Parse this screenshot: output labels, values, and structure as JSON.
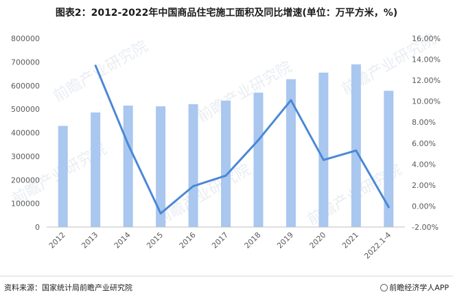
{
  "title": "图表2：2012-2022年中国商品住宅施工面积及同比增速(单位：万平方米，%)",
  "footer": {
    "source": "资料来源：国家统计局前瞻产业研究院",
    "brand": "前瞻经济学人APP"
  },
  "watermark": "前瞻产业研究院",
  "colors": {
    "bar": "#a9c7ef",
    "line": "#4a88d5",
    "axis": "#bfbfbf"
  },
  "chart_data": {
    "type": "bar+line",
    "categories": [
      "2012",
      "2013",
      "2014",
      "2015",
      "2016",
      "2017",
      "2018",
      "2019",
      "2020",
      "2021",
      "2022.1-4"
    ],
    "series": [
      {
        "type": "bar",
        "axis": "left",
        "values": [
          429000,
          486000,
          515000,
          512000,
          521000,
          536000,
          570000,
          627000,
          655000,
          690000,
          578000
        ]
      },
      {
        "type": "line",
        "axis": "right",
        "values": [
          null,
          13.4,
          5.9,
          -0.7,
          1.9,
          2.9,
          6.3,
          10.1,
          4.4,
          5.3,
          -0.1
        ]
      }
    ],
    "y_left": {
      "min": 0,
      "max": 800000,
      "step": 100000,
      "ticks": [
        "0",
        "100000",
        "200000",
        "300000",
        "400000",
        "500000",
        "600000",
        "700000",
        "800000"
      ]
    },
    "y_right": {
      "min": -2,
      "max": 16,
      "step": 2,
      "ticks": [
        "-2.00%",
        "0.00%",
        "2.00%",
        "4.00%",
        "6.00%",
        "8.00%",
        "10.00%",
        "12.00%",
        "14.00%",
        "16.00%"
      ]
    },
    "grid": false,
    "legend": "none"
  }
}
